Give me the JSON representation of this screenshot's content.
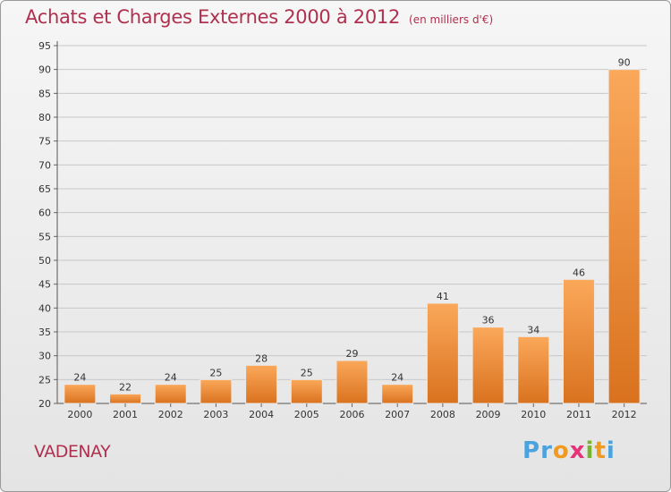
{
  "title": "Achats et Charges Externes 2000 à 2012",
  "subtitle": "(en milliers d'€)",
  "municipality": "VADENAY",
  "logo": {
    "letters": [
      "P",
      "r",
      "o",
      "x",
      "i",
      "t",
      "i"
    ],
    "colors": [
      "#4aa3df",
      "#4aa3df",
      "#f29a1f",
      "#e5337a",
      "#7ab32d",
      "#f29a1f",
      "#4aa3df"
    ]
  },
  "colors": {
    "title": "#b0304f",
    "bar_light": "#fba85a",
    "bar_dark": "#d9721f",
    "grid": "#c8c8c8",
    "axis_text": "#333333"
  },
  "chart_data": {
    "type": "bar",
    "categories": [
      "2000",
      "2001",
      "2002",
      "2003",
      "2004",
      "2005",
      "2006",
      "2007",
      "2008",
      "2009",
      "2010",
      "2011",
      "2012"
    ],
    "values": [
      24,
      22,
      24,
      25,
      28,
      25,
      29,
      24,
      41,
      36,
      34,
      46,
      90
    ],
    "data_labels": [
      "24",
      "22",
      "24",
      "25",
      "28",
      "25",
      "29",
      "24",
      "41",
      "36",
      "34",
      "46",
      "90"
    ],
    "y_ticks": [
      "20",
      "25",
      "30",
      "35",
      "40",
      "45",
      "50",
      "55",
      "60",
      "65",
      "70",
      "75",
      "80",
      "85",
      "90",
      "95"
    ],
    "ylim": [
      20,
      95
    ],
    "grid": true,
    "title": "Achats et Charges Externes 2000 à 2012",
    "xlabel": "",
    "ylabel": ""
  }
}
